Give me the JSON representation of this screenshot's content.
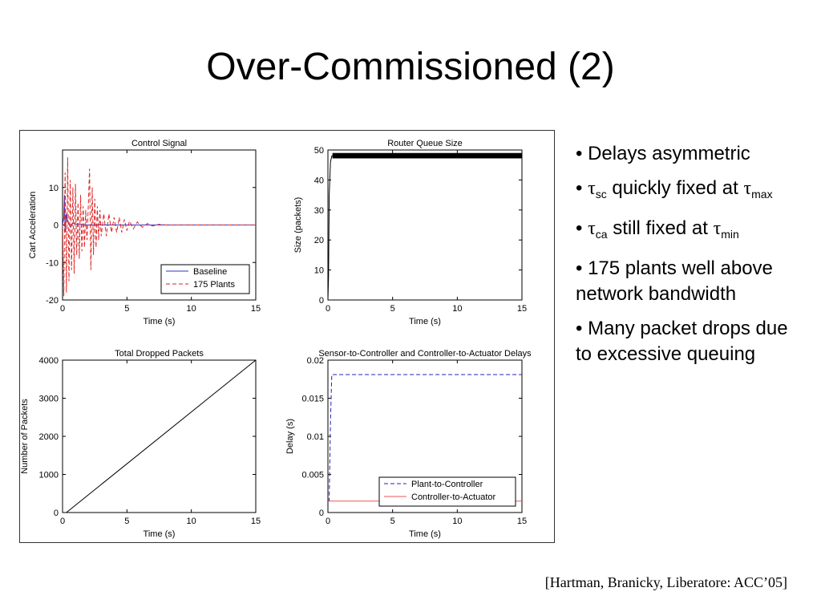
{
  "slide": {
    "title": "Over-Commissioned (2)",
    "citation": "[Hartman, Branicky, Liberatore: ACC’05]"
  },
  "bullets": [
    {
      "text": "Delays asymmetric"
    },
    {
      "sym": "τ",
      "sub": "sc",
      "text": " quickly fixed at ",
      "sym2": "τ",
      "sub2": "max"
    },
    {
      "sym": "τ",
      "sub": "ca",
      "text": " still fixed at ",
      "sym2": "τ",
      "sub2": "min"
    },
    {
      "text": "175 plants well above network bandwidth"
    },
    {
      "text": "Many packet drops due to excessive queuing"
    }
  ],
  "bullet_marker": "•",
  "chart_data": [
    {
      "type": "line",
      "title": "Control Signal",
      "xlabel": "Time (s)",
      "ylabel": "Cart Acceleration",
      "xlim": [
        0,
        15
      ],
      "ylim": [
        -20,
        20
      ],
      "xticks": [
        0,
        5,
        10,
        15
      ],
      "yticks": [
        -20,
        -10,
        0,
        10
      ],
      "legend_position": "bottom-right",
      "series": [
        {
          "name": "Baseline",
          "color": "#3333cc",
          "dash": "solid",
          "x": [
            0,
            0.1,
            0.15,
            0.2,
            0.3,
            0.4,
            0.6,
            0.8,
            1.2,
            2,
            15
          ],
          "y": [
            0,
            2,
            8,
            -2,
            3,
            1,
            -0.5,
            0.5,
            0.1,
            0,
            0
          ]
        },
        {
          "name": "175 Plants",
          "color": "#dd2222",
          "dash": "dashed",
          "x": [
            0,
            0.1,
            0.2,
            0.3,
            0.4,
            0.5,
            0.6,
            0.7,
            0.8,
            0.9,
            1.0,
            1.1,
            1.2,
            1.3,
            1.4,
            1.5,
            1.6,
            1.7,
            1.8,
            1.9,
            2.0,
            2.1,
            2.2,
            2.3,
            2.4,
            2.5,
            2.6,
            2.7,
            2.8,
            2.9,
            3.0,
            3.2,
            3.4,
            3.6,
            3.8,
            4.0,
            4.2,
            4.4,
            4.6,
            4.8,
            5.0,
            5.2,
            5.5,
            5.8,
            6.2,
            6.6,
            7.0,
            7.5,
            8.0,
            15
          ],
          "y": [
            0,
            -19,
            14,
            -18,
            18,
            -15,
            12,
            -12,
            10,
            -13,
            11,
            -8,
            6,
            -9,
            8,
            -7,
            5,
            -6,
            4,
            -4,
            5,
            15,
            -12,
            10,
            -8,
            7,
            -6,
            5,
            -4,
            4,
            -3,
            3,
            -3,
            3,
            -2,
            2,
            -2,
            2,
            -2,
            1.5,
            -1.5,
            1,
            -1,
            0.8,
            -0.6,
            0.4,
            -0.3,
            0.2,
            0,
            0
          ]
        }
      ]
    },
    {
      "type": "line",
      "title": "Router Queue Size",
      "xlabel": "Time (s)",
      "ylabel": "Size (packets)",
      "xlim": [
        0,
        15
      ],
      "ylim": [
        0,
        50
      ],
      "xticks": [
        0,
        5,
        10,
        15
      ],
      "yticks": [
        0,
        10,
        20,
        30,
        40,
        50
      ],
      "series": [
        {
          "color": "#000000",
          "dash": "solid",
          "x": [
            0,
            0.05,
            0.1,
            0.2,
            0.3,
            15
          ],
          "y": [
            0,
            8,
            35,
            46,
            48,
            48
          ],
          "band": [
            47.2,
            49.0
          ]
        }
      ]
    },
    {
      "type": "line",
      "title": "Total Dropped Packets",
      "xlabel": "Time (s)",
      "ylabel": "Number of Packets",
      "xlim": [
        0,
        15
      ],
      "ylim": [
        0,
        4000
      ],
      "xticks": [
        0,
        5,
        10,
        15
      ],
      "yticks": [
        0,
        1000,
        2000,
        3000,
        4000
      ],
      "series": [
        {
          "color": "#000000",
          "dash": "solid",
          "x": [
            0,
            0.3,
            15
          ],
          "y": [
            0,
            0,
            4000
          ]
        }
      ]
    },
    {
      "type": "line",
      "title": "Sensor-to-Controller and Controller-to-Actuator Delays",
      "xlabel": "Time (s)",
      "ylabel": "Delay (s)",
      "xlim": [
        0,
        15
      ],
      "ylim": [
        0,
        0.02
      ],
      "xticks": [
        0,
        5,
        10,
        15
      ],
      "yticks": [
        0,
        0.005,
        0.01,
        0.015,
        0.02
      ],
      "legend_position": "bottom-right",
      "series": [
        {
          "name": "Plant-to-Controller",
          "color": "#2222bb",
          "dash": "dashed",
          "x": [
            0,
            0.1,
            0.2,
            0.3,
            0.4,
            15
          ],
          "y": [
            0.0015,
            0.0016,
            0.012,
            0.0181,
            0.0181,
            0.0181
          ]
        },
        {
          "name": "Controller-to-Actuator",
          "color": "#ee5555",
          "dash": "solid",
          "x": [
            0,
            15
          ],
          "y": [
            0.0015,
            0.0015
          ]
        }
      ]
    }
  ]
}
